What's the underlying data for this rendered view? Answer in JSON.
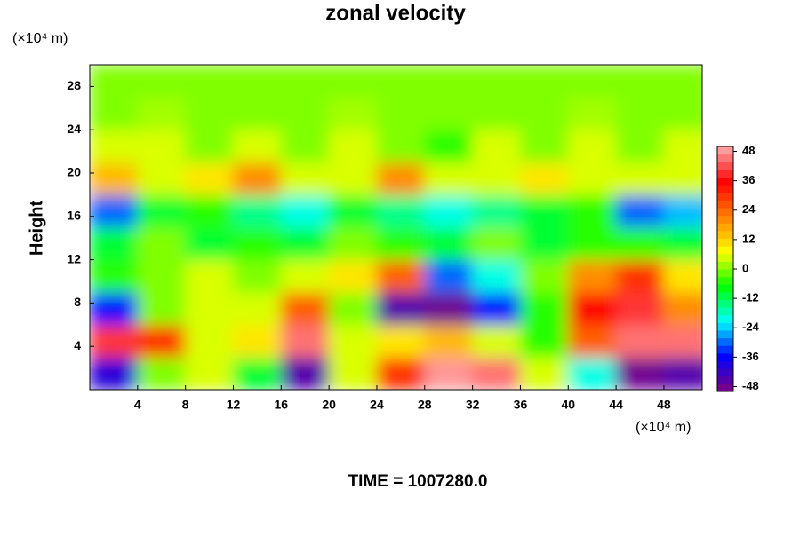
{
  "chart_data": {
    "type": "contour",
    "title": "zonal velocity",
    "subtitle": "TIME = 1007280.0",
    "y_label": "Height",
    "y_units": "(×10⁴ m)",
    "x_units": "(×10⁴ m)",
    "xlim": [
      0,
      51.2
    ],
    "ylim": [
      0,
      30
    ],
    "xticks": [
      4,
      8,
      12,
      16,
      20,
      24,
      28,
      32,
      36,
      40,
      44,
      48
    ],
    "yticks": [
      4,
      8,
      12,
      16,
      20,
      24,
      28
    ],
    "x": [
      2,
      6,
      10,
      14,
      18,
      22,
      26,
      30,
      34,
      38,
      42,
      46,
      50
    ],
    "y": [
      1.5,
      4.5,
      7.5,
      10.5,
      13.5,
      16.5,
      19.5,
      22.5,
      25.5,
      28.5
    ],
    "z": [
      [
        -40,
        0,
        5,
        -10,
        -45,
        5,
        30,
        48,
        45,
        5,
        -20,
        -48,
        -45
      ],
      [
        40,
        30,
        5,
        10,
        45,
        5,
        10,
        15,
        5,
        -5,
        25,
        45,
        45
      ],
      [
        -35,
        0,
        5,
        5,
        25,
        0,
        -45,
        -48,
        -35,
        -5,
        35,
        40,
        20
      ],
      [
        -5,
        0,
        5,
        0,
        5,
        10,
        25,
        -30,
        -20,
        0,
        20,
        30,
        10
      ],
      [
        -10,
        0,
        -10,
        -5,
        -10,
        0,
        -5,
        -10,
        0,
        -10,
        -5,
        -5,
        -10
      ],
      [
        -30,
        -10,
        -5,
        -15,
        -20,
        -10,
        -15,
        -20,
        -15,
        -10,
        -5,
        -30,
        -25
      ],
      [
        15,
        5,
        10,
        20,
        5,
        5,
        20,
        5,
        5,
        10,
        5,
        5,
        5
      ],
      [
        5,
        5,
        0,
        5,
        0,
        5,
        0,
        -5,
        5,
        0,
        5,
        0,
        5
      ],
      [
        0,
        2,
        0,
        0,
        0,
        2,
        0,
        0,
        0,
        0,
        2,
        0,
        0
      ],
      [
        0,
        0,
        0,
        0,
        0,
        0,
        0,
        0,
        0,
        0,
        0,
        0,
        0
      ]
    ],
    "clim": [
      -50,
      50
    ],
    "cticks": [
      -48,
      -36,
      -24,
      -12,
      0,
      12,
      24,
      36,
      48
    ],
    "colors": [
      "#800080",
      "#0000ff",
      "#00ffff",
      "#00ff00",
      "#ffff00",
      "#ff8000",
      "#ff0000",
      "#ffb0b0"
    ]
  }
}
